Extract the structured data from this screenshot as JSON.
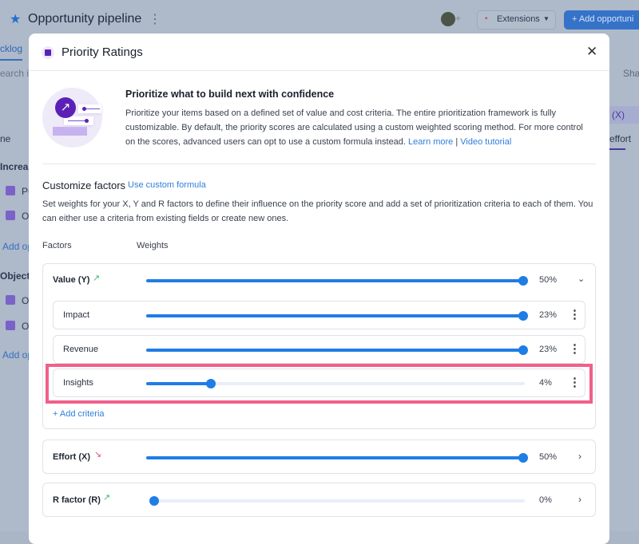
{
  "app": {
    "title": "Opportunity pipeline",
    "tab": "cklog",
    "search_placeholder": "earch in",
    "extensions_label": "Extensions",
    "add_button": "+ Add opportuni",
    "share_label": "Sha",
    "left_column": {
      "header": "ne",
      "group1": "Increas",
      "items1": [
        "Pu",
        "O"
      ],
      "add1": "Add op",
      "group2": "Objecti",
      "items2": [
        "O",
        "O"
      ],
      "add2": "Add op"
    },
    "right_column": {
      "header": "(X)",
      "tab": "effort"
    }
  },
  "modal": {
    "title": "Priority Ratings",
    "intro": {
      "heading": "Prioritize what to build next with confidence",
      "body": "Prioritize your items based on a defined set of value and cost criteria. The entire prioritization framework is fully customizable. By default, the priority scores are calculated using a custom weighted scoring method. For more control on the scores, advanced users can opt to use a custom formula instead.",
      "learn_more": "Learn more",
      "separator": "|",
      "video": "Video tutorial"
    },
    "customize": {
      "title": "Customize factors",
      "formula_link": "Use custom formula",
      "description": "Set weights for your X, Y and R factors to define their influence on the priority score and add a set of prioritization criteria to each of them. You can either use a criteria from existing fields or create new ones."
    },
    "columns": {
      "factors": "Factors",
      "weights": "Weights"
    },
    "factors": [
      {
        "name": "Value (Y)",
        "weight": "50%",
        "slider_fill": 1.0,
        "trend": "up",
        "expanded": true,
        "criteria": [
          {
            "name": "Impact",
            "weight": "23%",
            "slider_fill": 1.0
          },
          {
            "name": "Revenue",
            "weight": "23%",
            "slider_fill": 1.0
          },
          {
            "name": "Insights",
            "weight": "4%",
            "slider_fill": 0.17,
            "highlighted": true
          }
        ],
        "add_criteria": "+ Add criteria"
      },
      {
        "name": "Effort (X)",
        "weight": "50%",
        "slider_fill": 1.0,
        "trend": "down",
        "expanded": false
      },
      {
        "name": "R factor (R)",
        "weight": "0%",
        "slider_fill": 0.0,
        "trend": "up",
        "expanded": false
      }
    ]
  },
  "colors": {
    "accent": "#1f7de6",
    "highlight": "#f0608a",
    "brand": "#5b21b6",
    "trend_up": "#3fb96b",
    "trend_down": "#e0506a"
  }
}
